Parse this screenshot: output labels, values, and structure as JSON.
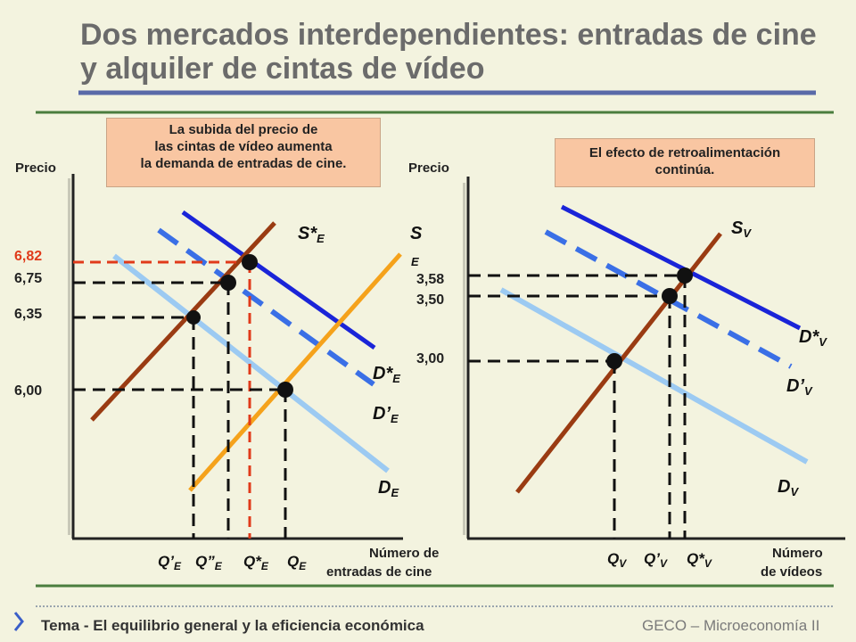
{
  "title": "Dos mercados interdependientes: entradas de cine y alquiler de cintas de vídeo",
  "callout_left": [
    "La subida del precio de",
    "las cintas de vídeo aumenta",
    "la demanda de entradas de cine."
  ],
  "callout_right": [
    "El efecto de retroalimentación",
    "continúa."
  ],
  "left_panel": {
    "y_axis_label": "Precio",
    "x_axis_label": [
      "Número de",
      "entradas de cine"
    ],
    "prices": [
      "6,82",
      "6,75",
      "6,35",
      "6,00"
    ],
    "highlight_price": "6,82",
    "curves": {
      "s_star": {
        "main": "S*",
        "sub": "E"
      },
      "s": {
        "main": "S",
        "sub": "E"
      },
      "d_star": {
        "main": "D*",
        "sub": "E"
      },
      "d_prime": {
        "main": "D’",
        "sub": "E"
      },
      "d": {
        "main": "D",
        "sub": "E"
      }
    },
    "quantities": [
      {
        "main": "Q’",
        "sub": "E"
      },
      {
        "main": "Q”",
        "sub": "E"
      },
      {
        "main": "Q*",
        "sub": "E"
      },
      {
        "main": "Q",
        "sub": "E"
      }
    ]
  },
  "right_panel": {
    "y_axis_label": "Precio",
    "x_axis_label": [
      "Número",
      "de vídeos"
    ],
    "prices": [
      "3,58",
      "3,50",
      "3,00"
    ],
    "curves": {
      "s": {
        "main": "S",
        "sub": "V"
      },
      "d_star": {
        "main": "D*",
        "sub": "V"
      },
      "d_prime": {
        "main": "D’",
        "sub": "V"
      },
      "d": {
        "main": "D",
        "sub": "V"
      }
    },
    "quantities": [
      {
        "main": "Q",
        "sub": "V"
      },
      {
        "main": "Q’",
        "sub": "V"
      },
      {
        "main": "Q*",
        "sub": "V"
      }
    ]
  },
  "footer": {
    "left_prefix": "Tema",
    "left_text": " - El equilibrio general y la eficiencia económica",
    "right_text": "GECO – Microeconomía II"
  },
  "colors": {
    "supply_brown": "#9a3b12",
    "supply_orange": "#f5a21b",
    "demand_dark_blue": "#1a24d8",
    "demand_dashed_blue": "#3a6fe6",
    "demand_light_blue": "#9ccaf2",
    "highlight_red": "#e03a1a",
    "title_gray": "#6b6b6b",
    "rule_blue": "#5a6aa8",
    "rule_green": "#4a7d3e"
  }
}
